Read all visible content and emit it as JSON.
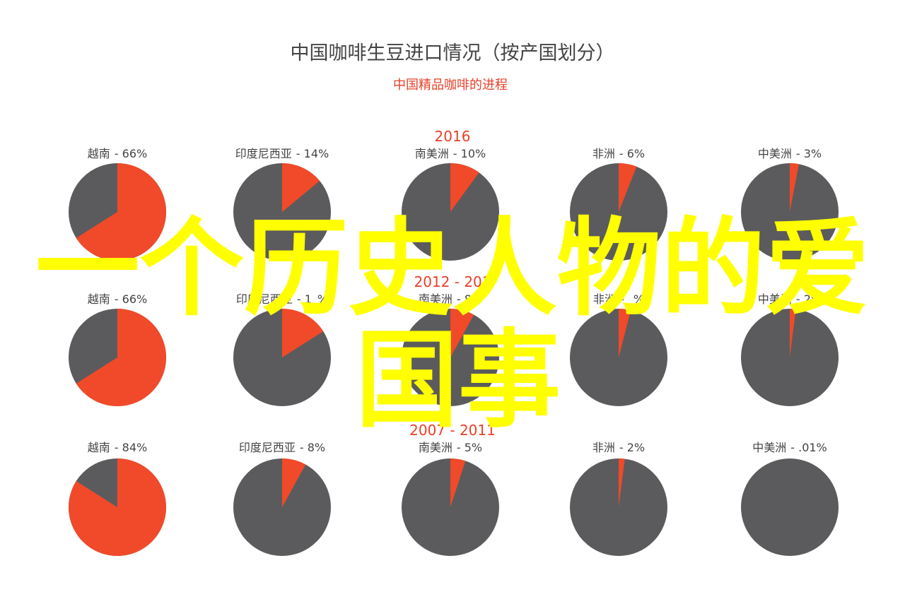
{
  "chart_data": {
    "type": "pie",
    "title": "中国咖啡生豆进口情况（按产国划分）",
    "subtitle": "中国精品咖啡的进程",
    "colors": {
      "share": "#f04a2a",
      "rest": "#5b5b5d"
    },
    "periods": [
      {
        "label": "2016",
        "slices": [
          {
            "country": "越南",
            "value_label": "- 66%",
            "share": 66
          },
          {
            "country": "印度尼西亚",
            "value_label": "- 14%",
            "share": 14
          },
          {
            "country": "南美洲",
            "value_label": "- 10%",
            "share": 10
          },
          {
            "country": "非洲",
            "value_label": "- 6%",
            "share": 6
          },
          {
            "country": "中美洲",
            "value_label": "- 3%",
            "share": 3
          }
        ]
      },
      {
        "label": "2012 - 201",
        "slices": [
          {
            "country": "越南",
            "value_label": "- 66%",
            "share": 66
          },
          {
            "country": "印度尼西亚",
            "value_label": "- 1_%",
            "share": 16
          },
          {
            "country": "南美洲",
            "value_label": "- 8%",
            "share": 8
          },
          {
            "country": "非洲",
            "value_label": "- _%",
            "share": 4
          },
          {
            "country": "中美洲",
            "value_label": "- 2%",
            "share": 2
          }
        ]
      },
      {
        "label": "2007 - 2011",
        "slices": [
          {
            "country": "越南",
            "value_label": "- 84%",
            "share": 84
          },
          {
            "country": "印度尼西亚",
            "value_label": "- 8%",
            "share": 8
          },
          {
            "country": "南美洲",
            "value_label": "- 5%",
            "share": 5
          },
          {
            "country": "非洲",
            "value_label": "- 2%",
            "share": 2
          },
          {
            "country": "中美洲",
            "value_label": "- .01%",
            "share": 0.01
          }
        ]
      }
    ]
  },
  "overlay": {
    "line1": "一个历史人物的爱",
    "line2": "国事",
    "color": "#ffff00"
  }
}
